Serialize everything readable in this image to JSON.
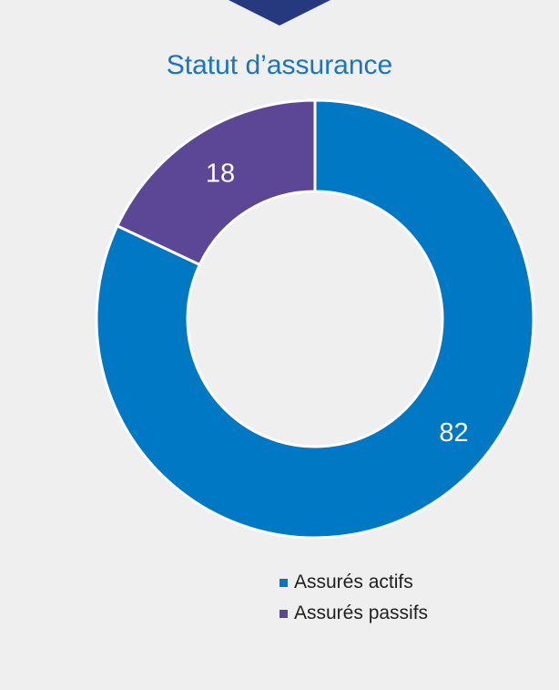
{
  "chart_data": {
    "type": "pie",
    "title": "Statut d’assurance",
    "donut": true,
    "slices": [
      {
        "label": "Assurés actifs",
        "value": 82,
        "data_label": "82",
        "color": "#0078c4"
      },
      {
        "label": "Assurés passifs",
        "value": 18,
        "data_label": "18",
        "color": "#5c4797"
      }
    ],
    "legend_position": "bottom-right"
  },
  "colors": {
    "background": "#efefef",
    "arrow": "#26397f",
    "title": "#1a74c0"
  }
}
